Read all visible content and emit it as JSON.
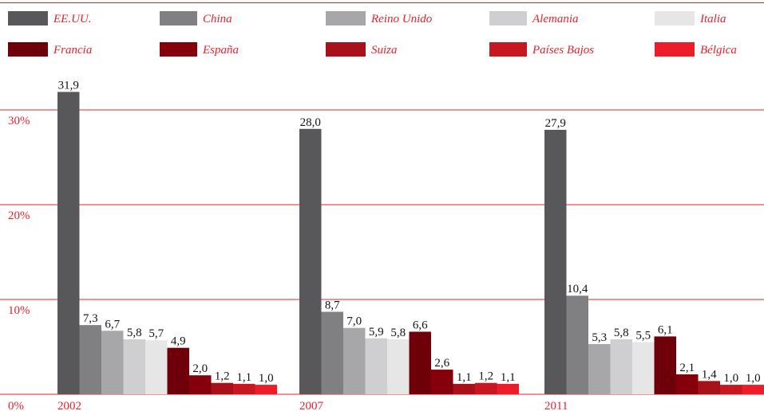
{
  "chart_data": {
    "type": "bar",
    "categories": [
      "2002",
      "2007",
      "2011"
    ],
    "ylim": [
      0,
      31.9
    ],
    "yticks": [
      {
        "value": 0,
        "label": "0%"
      },
      {
        "value": 10,
        "label": "10%"
      },
      {
        "value": 20,
        "label": "20%"
      },
      {
        "value": 30,
        "label": "30%"
      }
    ],
    "grid": true,
    "legend_position": "top",
    "series": [
      {
        "name": "EE.UU.",
        "color": "#58585a",
        "values": [
          31.9,
          28.0,
          27.9
        ],
        "labels": [
          "31,9",
          "28,0",
          "27,9"
        ]
      },
      {
        "name": "China",
        "color": "#808083",
        "values": [
          7.3,
          8.7,
          10.4
        ],
        "labels": [
          "7,3",
          "8,7",
          "10,4"
        ]
      },
      {
        "name": "Reino Unido",
        "color": "#a7a7a9",
        "values": [
          6.7,
          7.0,
          5.3
        ],
        "labels": [
          "6,7",
          "7,0",
          "5,3"
        ]
      },
      {
        "name": "Alemania",
        "color": "#cfcfd1",
        "values": [
          5.8,
          5.9,
          5.8
        ],
        "labels": [
          "5,8",
          "5,9",
          "5,8"
        ]
      },
      {
        "name": "Italia",
        "color": "#e6e6e7",
        "values": [
          5.7,
          5.8,
          5.5
        ],
        "labels": [
          "5,7",
          "5,8",
          "5,5"
        ]
      },
      {
        "name": "Francia",
        "color": "#6d0009",
        "values": [
          4.9,
          6.6,
          6.1
        ],
        "labels": [
          "4,9",
          "6,6",
          "6,1"
        ]
      },
      {
        "name": "España",
        "color": "#86000c",
        "values": [
          2.0,
          2.6,
          2.1
        ],
        "labels": [
          "2,0",
          "2,6",
          "2,1"
        ]
      },
      {
        "name": "Suiza",
        "color": "#a8101a",
        "values": [
          1.2,
          1.1,
          1.4
        ],
        "labels": [
          "1,2",
          "1,1",
          "1,4"
        ]
      },
      {
        "name": "Países Bajos",
        "color": "#c71822",
        "values": [
          1.1,
          1.2,
          1.0
        ],
        "labels": [
          "1,1",
          "1,2",
          "1,0"
        ]
      },
      {
        "name": "Bélgica",
        "color": "#ec1c28",
        "values": [
          1.0,
          1.1,
          1.0
        ],
        "labels": [
          "1,0",
          "1,1",
          "1,0"
        ]
      }
    ],
    "gridline_color": "#e8222e"
  }
}
